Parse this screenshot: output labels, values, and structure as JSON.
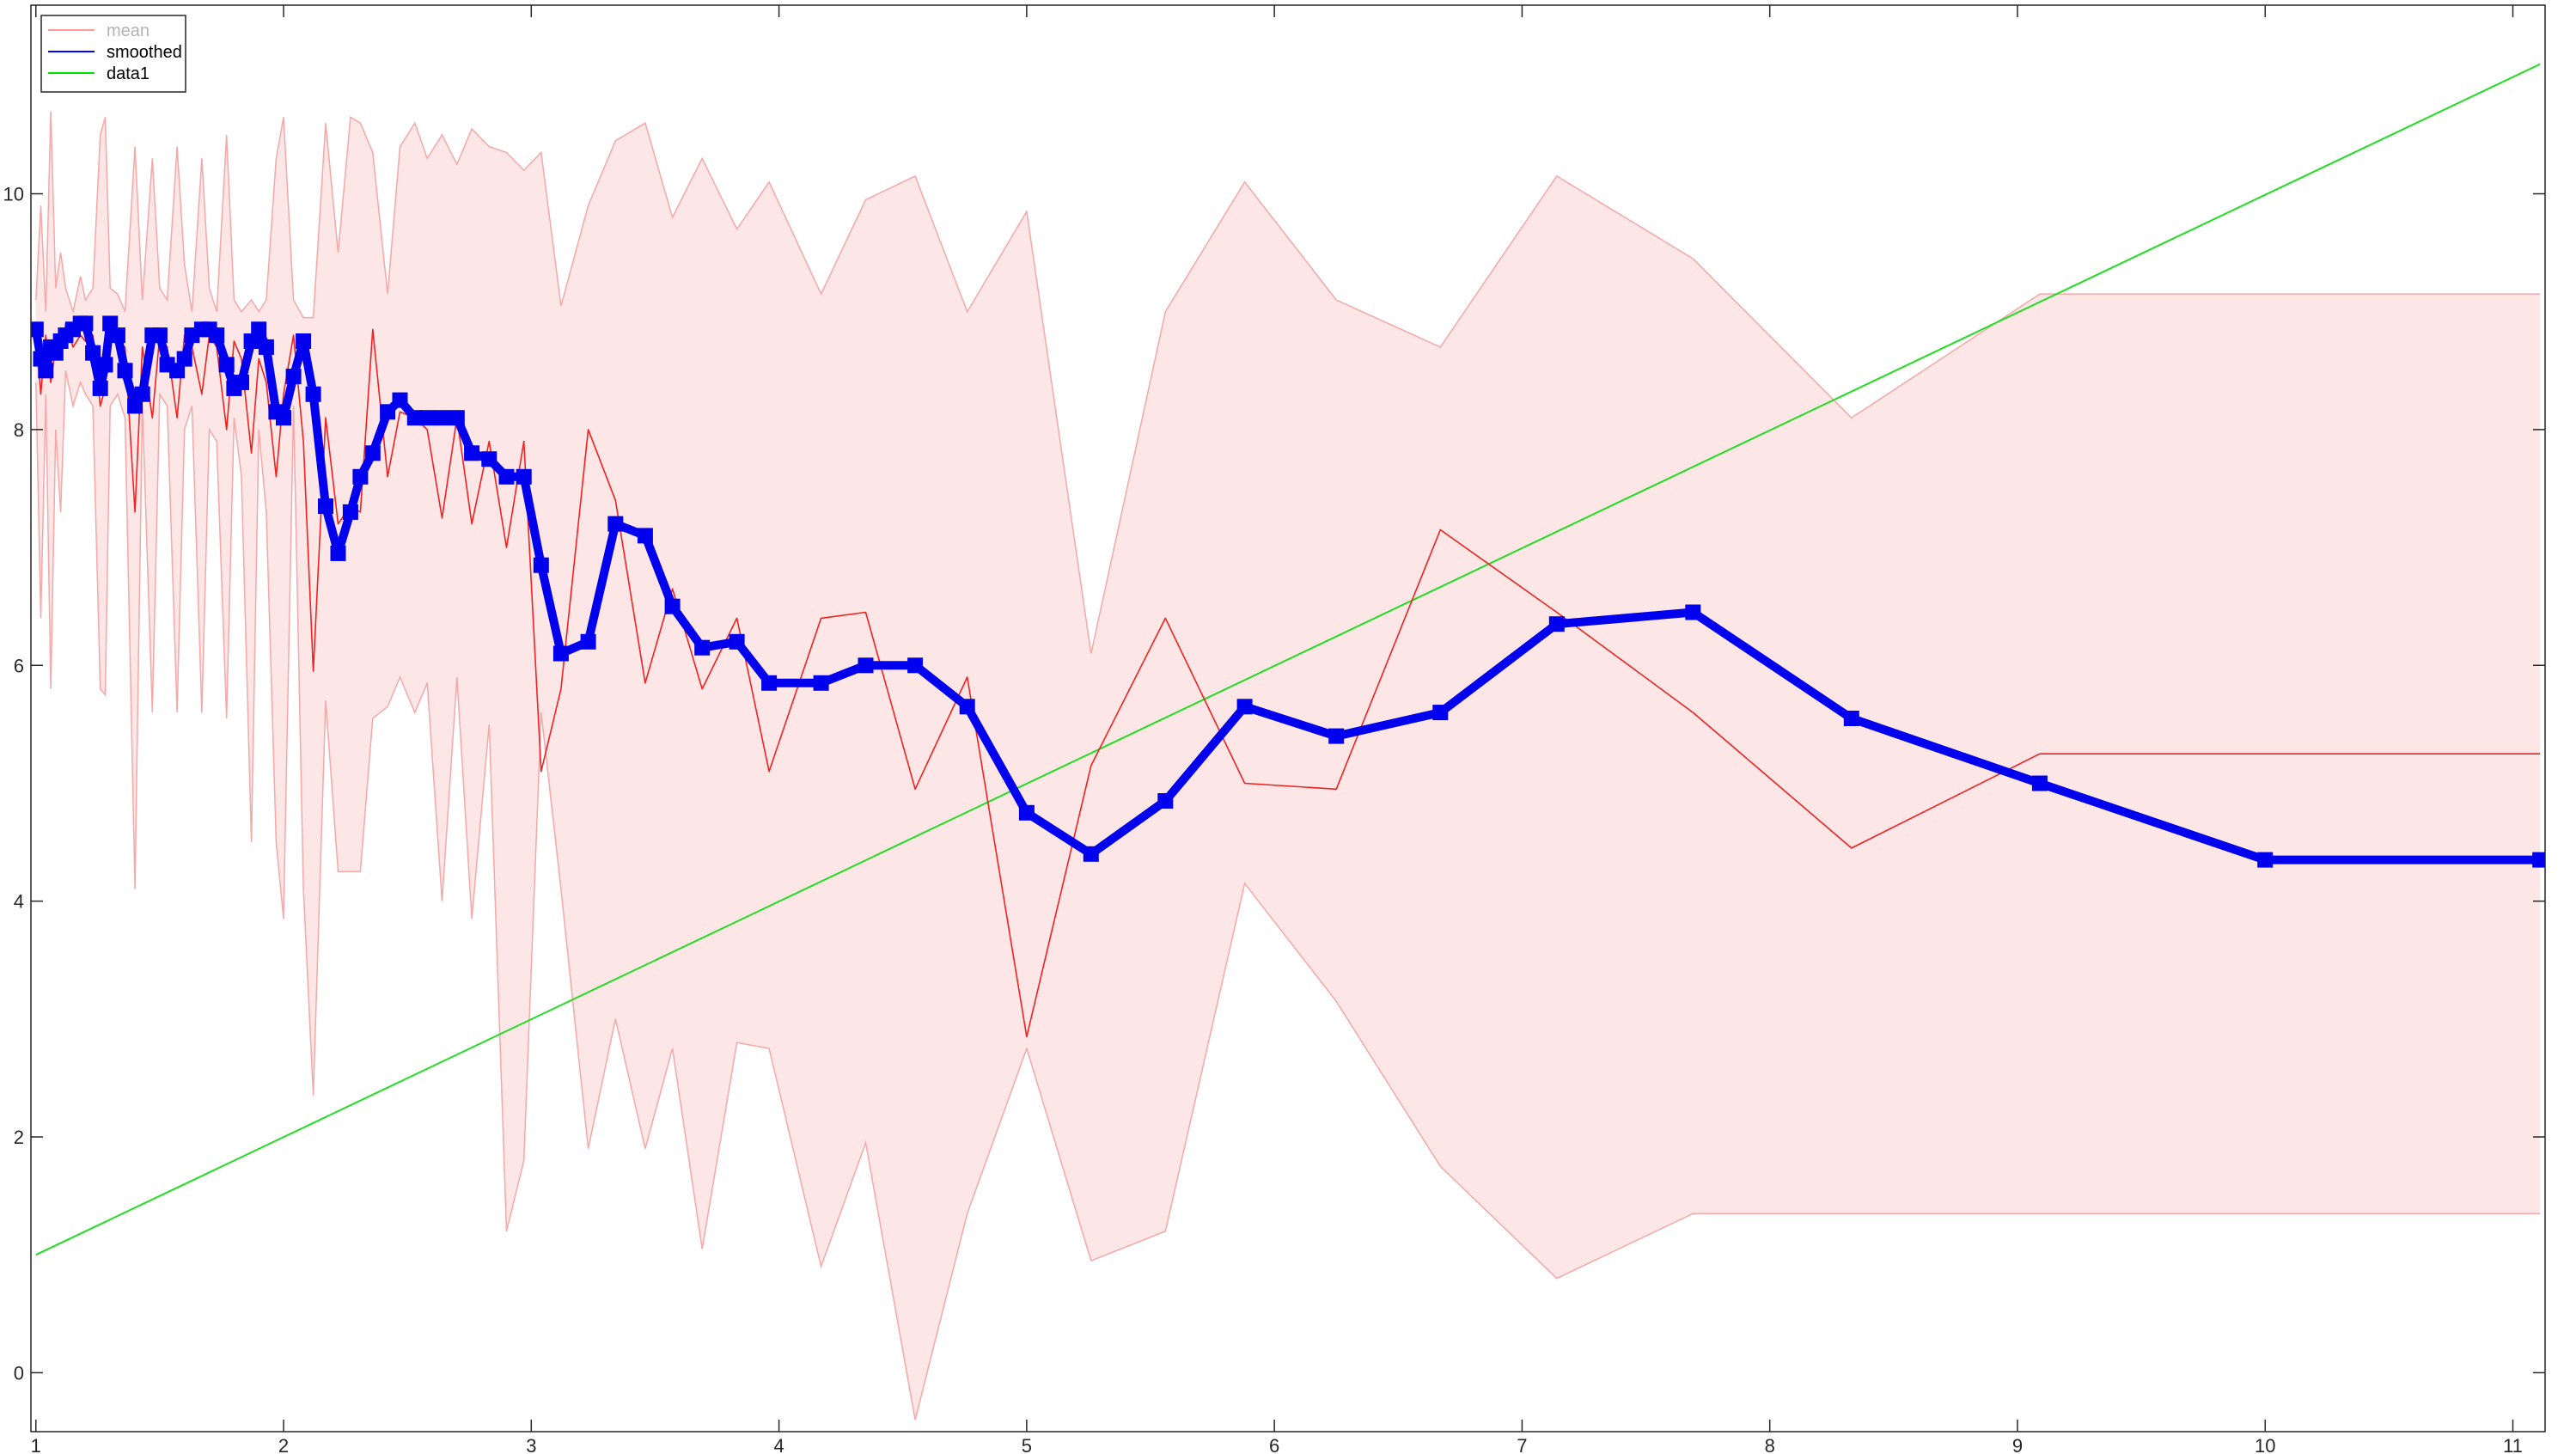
{
  "chart_data": {
    "type": "line",
    "title": "",
    "xlabel": "",
    "ylabel": "",
    "xlim": [
      0.98,
      11.13
    ],
    "ylim": [
      -0.5,
      11.6
    ],
    "xticks": [
      1,
      2,
      3,
      4,
      5,
      6,
      7,
      8,
      9,
      10,
      11
    ],
    "yticks": [
      0,
      2,
      4,
      6,
      8,
      10
    ],
    "grid": false,
    "legend": {
      "location": "top-left",
      "entries": [
        {
          "name": "mean",
          "color": "#ff9a9a",
          "faded": true
        },
        {
          "name": "smoothed",
          "color": "#0000ff",
          "faded": false
        },
        {
          "name": "data1",
          "color": "#00e000",
          "faded": false
        }
      ]
    },
    "colors": {
      "band_fill": "#fde6e6",
      "band_edge": "#f4a8a8",
      "mean": "#ee2222",
      "smoothed": "#0000ee",
      "data1": "#22dd22"
    },
    "band": {
      "x": [
        1.0,
        1.02,
        1.04,
        1.06,
        1.08,
        1.1,
        1.12,
        1.15,
        1.18,
        1.2,
        1.23,
        1.26,
        1.28,
        1.3,
        1.33,
        1.36,
        1.4,
        1.43,
        1.47,
        1.5,
        1.53,
        1.57,
        1.6,
        1.63,
        1.67,
        1.7,
        1.73,
        1.77,
        1.8,
        1.83,
        1.87,
        1.9,
        1.93,
        1.97,
        2.0,
        2.04,
        2.08,
        2.12,
        2.17,
        2.22,
        2.27,
        2.31,
        2.36,
        2.42,
        2.47,
        2.53,
        2.58,
        2.64,
        2.7,
        2.76,
        2.83,
        2.9,
        2.97,
        3.04,
        3.12,
        3.23,
        3.34,
        3.46,
        3.57,
        3.69,
        3.83,
        3.96,
        4.17,
        4.35,
        4.55,
        4.76,
        5.0,
        5.26,
        5.56,
        5.88,
        6.25,
        6.67,
        7.14,
        7.69,
        8.33,
        9.09,
        10.0,
        11.11
      ],
      "upper": [
        9.1,
        9.9,
        9.0,
        10.7,
        9.2,
        9.5,
        9.2,
        9.0,
        9.3,
        9.1,
        9.2,
        10.5,
        10.65,
        9.2,
        9.15,
        9.0,
        10.4,
        9.1,
        10.3,
        9.2,
        9.1,
        10.4,
        9.4,
        9.0,
        10.3,
        9.2,
        9.0,
        10.5,
        9.1,
        9.0,
        9.1,
        9.0,
        9.1,
        10.3,
        10.65,
        9.1,
        8.95,
        8.95,
        10.6,
        9.5,
        10.65,
        10.6,
        10.35,
        9.15,
        10.4,
        10.6,
        10.3,
        10.5,
        10.25,
        10.55,
        10.4,
        10.35,
        10.2,
        10.35,
        9.05,
        9.9,
        10.45,
        10.6,
        9.8,
        10.3,
        9.7,
        10.1,
        9.15,
        9.95,
        10.15,
        9.0,
        9.85,
        6.1,
        9.0,
        10.1,
        9.1,
        8.7,
        10.15,
        9.45,
        8.1,
        9.15,
        9.15,
        9.15
      ],
      "lower": [
        8.4,
        6.4,
        8.3,
        5.8,
        8.0,
        7.3,
        8.5,
        8.2,
        8.4,
        8.3,
        8.2,
        5.8,
        5.75,
        8.2,
        8.3,
        8.1,
        4.1,
        8.2,
        5.6,
        8.3,
        8.2,
        5.6,
        8.0,
        8.2,
        5.6,
        8.0,
        7.9,
        5.55,
        8.1,
        7.6,
        4.5,
        8.0,
        7.3,
        4.5,
        3.85,
        8.2,
        4.1,
        2.35,
        5.7,
        4.25,
        4.25,
        4.25,
        5.55,
        5.65,
        5.9,
        5.6,
        5.85,
        4.0,
        5.9,
        3.85,
        5.5,
        1.2,
        1.8,
        5.6,
        4.1,
        1.9,
        3.0,
        1.9,
        2.75,
        1.05,
        2.8,
        2.75,
        0.9,
        1.95,
        -0.4,
        1.35,
        2.75,
        0.95,
        1.2,
        4.15,
        3.15,
        1.75,
        0.8,
        1.35,
        1.35,
        1.35,
        1.35,
        1.35
      ]
    },
    "series": [
      {
        "name": "mean",
        "x": [
          1.0,
          1.02,
          1.04,
          1.06,
          1.08,
          1.1,
          1.12,
          1.15,
          1.18,
          1.2,
          1.23,
          1.26,
          1.28,
          1.3,
          1.33,
          1.36,
          1.4,
          1.43,
          1.47,
          1.5,
          1.53,
          1.57,
          1.6,
          1.63,
          1.67,
          1.7,
          1.73,
          1.77,
          1.8,
          1.83,
          1.87,
          1.9,
          1.93,
          1.97,
          2.0,
          2.04,
          2.08,
          2.12,
          2.17,
          2.22,
          2.27,
          2.31,
          2.36,
          2.42,
          2.47,
          2.53,
          2.58,
          2.64,
          2.7,
          2.76,
          2.83,
          2.9,
          2.97,
          3.04,
          3.12,
          3.23,
          3.34,
          3.46,
          3.57,
          3.69,
          3.83,
          3.96,
          4.17,
          4.35,
          4.55,
          4.76,
          5.0,
          5.26,
          5.56,
          5.88,
          6.25,
          6.67,
          7.14,
          7.69,
          8.33,
          9.09,
          10.0,
          11.11
        ],
        "y": [
          8.8,
          8.3,
          8.8,
          8.4,
          8.7,
          8.6,
          8.9,
          8.7,
          8.8,
          8.75,
          8.8,
          8.2,
          8.35,
          8.8,
          8.75,
          8.7,
          7.3,
          8.7,
          8.1,
          8.8,
          8.7,
          8.1,
          8.8,
          8.7,
          8.3,
          8.8,
          8.7,
          8.0,
          8.75,
          8.6,
          7.8,
          8.6,
          8.4,
          7.6,
          8.3,
          8.8,
          7.9,
          5.95,
          8.1,
          7.2,
          7.35,
          7.3,
          8.85,
          7.6,
          8.15,
          8.1,
          8.0,
          7.25,
          8.1,
          7.2,
          7.9,
          7.0,
          7.9,
          5.1,
          5.8,
          8.0,
          7.4,
          5.85,
          6.65,
          5.8,
          6.4,
          5.1,
          6.4,
          6.45,
          4.95,
          5.9,
          2.85,
          5.15,
          6.4,
          5.0,
          4.95,
          7.15,
          6.45,
          5.6,
          4.45,
          5.25,
          5.25,
          5.25
        ]
      },
      {
        "name": "smoothed",
        "x": [
          1.0,
          1.02,
          1.04,
          1.06,
          1.08,
          1.1,
          1.12,
          1.15,
          1.18,
          1.2,
          1.23,
          1.26,
          1.28,
          1.3,
          1.33,
          1.36,
          1.4,
          1.43,
          1.47,
          1.5,
          1.53,
          1.57,
          1.6,
          1.63,
          1.67,
          1.7,
          1.73,
          1.77,
          1.8,
          1.83,
          1.87,
          1.9,
          1.93,
          1.97,
          2.0,
          2.04,
          2.08,
          2.12,
          2.17,
          2.22,
          2.27,
          2.31,
          2.36,
          2.42,
          2.47,
          2.53,
          2.58,
          2.64,
          2.7,
          2.76,
          2.83,
          2.9,
          2.97,
          3.04,
          3.12,
          3.23,
          3.34,
          3.46,
          3.57,
          3.69,
          3.83,
          3.96,
          4.17,
          4.35,
          4.55,
          4.76,
          5.0,
          5.26,
          5.56,
          5.88,
          6.25,
          6.67,
          7.14,
          7.69,
          8.33,
          9.09,
          10.0,
          11.11
        ],
        "y": [
          8.85,
          8.6,
          8.5,
          8.7,
          8.65,
          8.75,
          8.8,
          8.85,
          8.9,
          8.9,
          8.65,
          8.35,
          8.55,
          8.9,
          8.8,
          8.5,
          8.2,
          8.3,
          8.8,
          8.8,
          8.55,
          8.5,
          8.6,
          8.8,
          8.85,
          8.85,
          8.8,
          8.55,
          8.35,
          8.4,
          8.75,
          8.85,
          8.7,
          8.15,
          8.1,
          8.45,
          8.75,
          8.3,
          7.35,
          6.95,
          7.3,
          7.6,
          7.8,
          8.15,
          8.25,
          8.1,
          8.1,
          8.1,
          8.1,
          7.8,
          7.75,
          7.6,
          7.6,
          6.85,
          6.1,
          6.2,
          7.2,
          7.1,
          6.5,
          6.15,
          6.2,
          5.85,
          5.85,
          6.0,
          6.0,
          5.65,
          4.75,
          4.4,
          4.85,
          5.65,
          5.4,
          5.6,
          6.35,
          6.45,
          5.55,
          5.0,
          4.35,
          4.35
        ]
      },
      {
        "name": "data1",
        "x": [
          1.0,
          11.11
        ],
        "y": [
          1.0,
          11.1
        ]
      }
    ]
  }
}
